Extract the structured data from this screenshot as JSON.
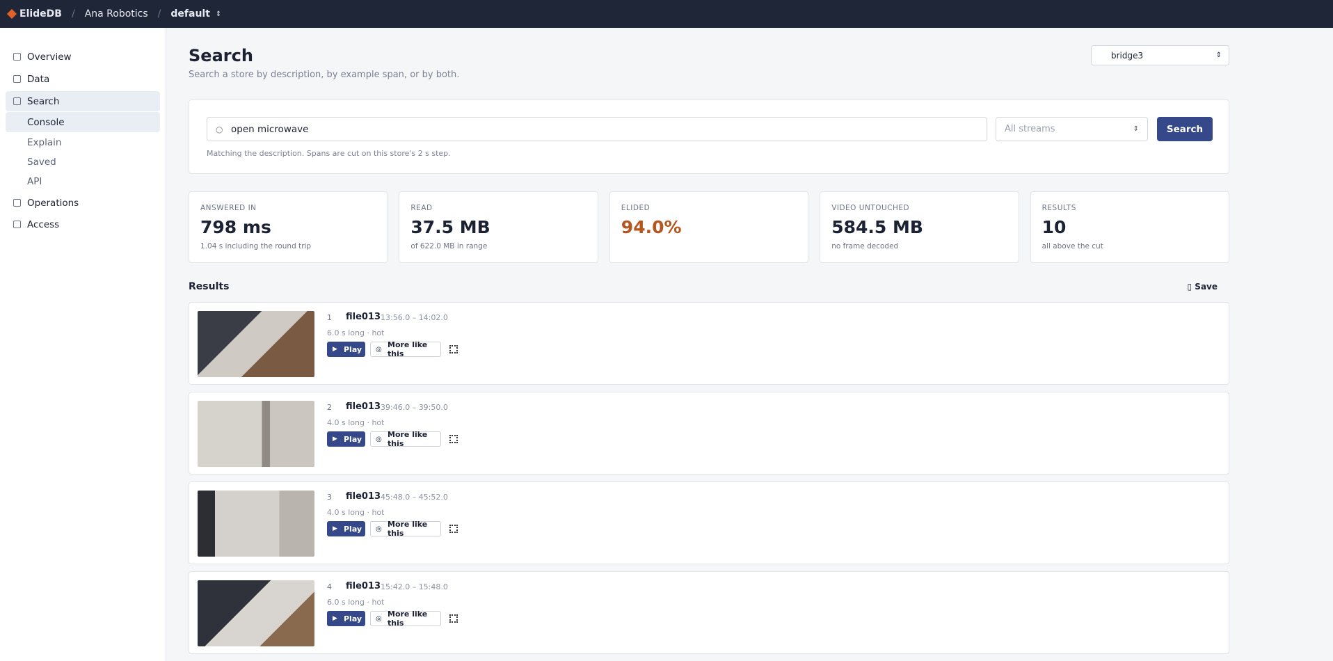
{
  "header": {
    "brand": "ElideDB",
    "org": "Ana Robotics",
    "project": "default"
  },
  "nav": [
    {
      "label": "Overview",
      "sub": false
    },
    {
      "label": "Data",
      "sub": false
    },
    {
      "label": "Search",
      "sub": false,
      "active": true
    },
    {
      "label": "Console",
      "sub": true,
      "active": true
    },
    {
      "label": "Explain",
      "sub": true
    },
    {
      "label": "Saved",
      "sub": true
    },
    {
      "label": "API",
      "sub": true
    },
    {
      "label": "Operations",
      "sub": false
    },
    {
      "label": "Access",
      "sub": false
    }
  ],
  "page": {
    "title": "Search",
    "subtitle": "Search a store by description, by example span, or by both.",
    "store": "bridge3"
  },
  "search": {
    "query": "open microwave",
    "streams": "All streams",
    "button": "Search",
    "hint": "Matching the description. Spans are cut on this store's 2 s step."
  },
  "stats": [
    {
      "label": "ANSWERED IN",
      "value": "798 ms",
      "note": "1.04 s including the round trip"
    },
    {
      "label": "READ",
      "value": "37.5 MB",
      "note": "of 622.0 MB in range"
    },
    {
      "label": "ELIDED",
      "value": "94.0%",
      "note": "",
      "color": "#b5561f"
    },
    {
      "label": "VIDEO UNTOUCHED",
      "value": "584.5 MB",
      "note": "no frame decoded"
    },
    {
      "label": "RESULTS",
      "value": "10",
      "note": "all above the cut"
    }
  ],
  "results": {
    "heading": "Results",
    "save": "Save",
    "play": "Play",
    "more": "More like this",
    "items": [
      {
        "rank": 1,
        "file": "file013",
        "range": "13:56.0 – 14:02.0",
        "meta": "6.0 s long · hot"
      },
      {
        "rank": 2,
        "file": "file013",
        "range": "39:46.0 – 39:50.0",
        "meta": "4.0 s long · hot"
      },
      {
        "rank": 3,
        "file": "file013",
        "range": "45:48.0 – 45:52.0",
        "meta": "4.0 s long · hot"
      },
      {
        "rank": 4,
        "file": "file013",
        "range": "15:42.0 – 15:48.0",
        "meta": "6.0 s long · hot"
      }
    ]
  }
}
